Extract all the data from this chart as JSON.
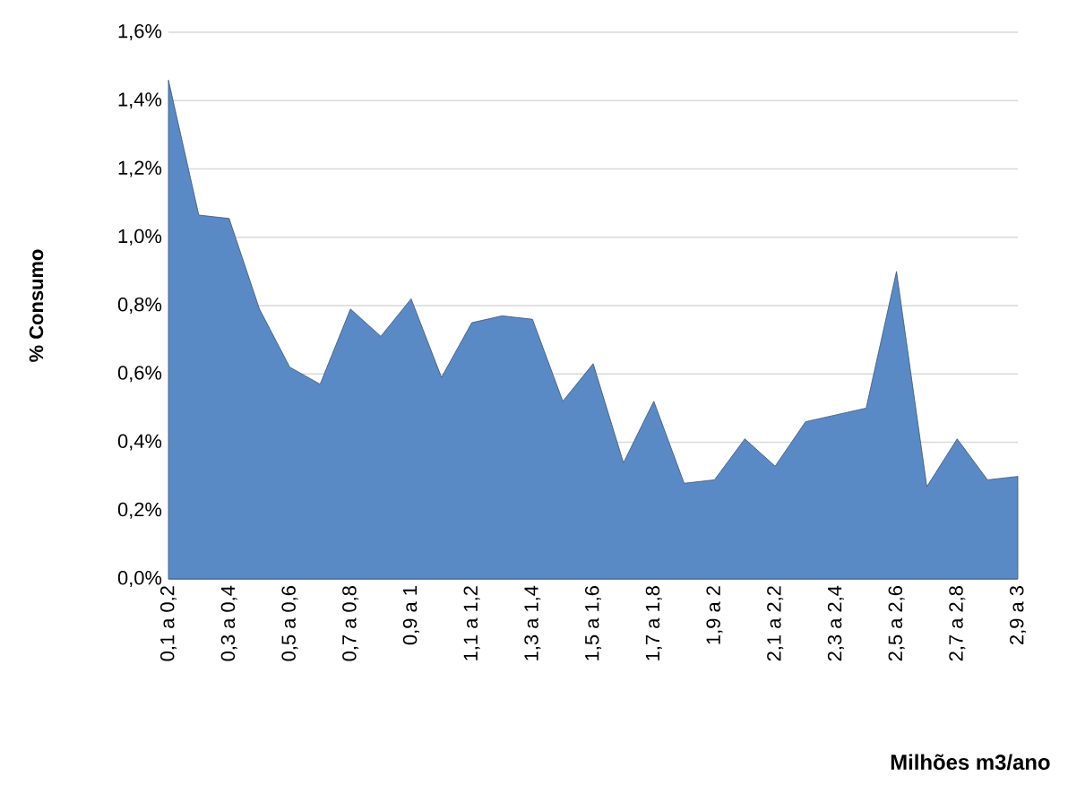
{
  "chart_data": {
    "type": "area",
    "xlabel": "Milhões m3/ano",
    "ylabel": "% Consumo",
    "categories": [
      "0,1 a 0,2",
      null,
      "0,3 a 0,4",
      null,
      "0,5 a 0,6",
      null,
      "0,7 a 0,8",
      null,
      "0,9 a 1",
      null,
      "1,1 a 1,2",
      null,
      "1,3 a 1,4",
      null,
      "1,5 a 1,6",
      null,
      "1,7 a 1,8",
      null,
      "1,9 a 2",
      null,
      "2,1 a 2,2",
      null,
      "2,3 a 2,4",
      null,
      "2,5 a 2,6",
      null,
      "2,7 a 2,8",
      null,
      "2,9 a 3"
    ],
    "series": [
      {
        "color": "#5a8ac6",
        "values": [
          1.46,
          1.065,
          1.055,
          0.79,
          0.62,
          0.57,
          0.79,
          0.71,
          0.82,
          0.59,
          0.75,
          0.77,
          0.76,
          0.52,
          0.63,
          0.34,
          0.52,
          0.28,
          0.29,
          0.41,
          0.33,
          0.46,
          0.48,
          0.5,
          0.9,
          0.27,
          0.41,
          0.29,
          0.3
        ]
      }
    ],
    "ylim": [
      0,
      1.6
    ],
    "yticks": [
      {
        "value": 0,
        "label": "0,0%"
      },
      {
        "value": 0.2,
        "label": "0,2%"
      },
      {
        "value": 0.4,
        "label": "0,4%"
      },
      {
        "value": 0.6,
        "label": "0,6%"
      },
      {
        "value": 0.8,
        "label": "0,8%"
      },
      {
        "value": 1.0,
        "label": "1,0%"
      },
      {
        "value": 1.2,
        "label": "1,2%"
      },
      {
        "value": 1.4,
        "label": "1,4%"
      },
      {
        "value": 1.6,
        "label": "1,6%"
      }
    ],
    "grid": "y"
  }
}
